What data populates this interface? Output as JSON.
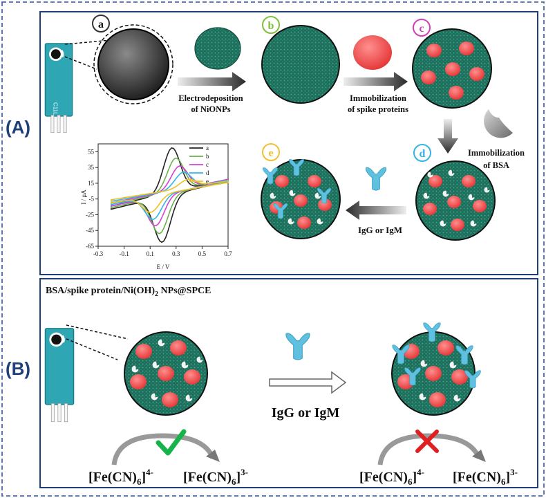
{
  "panels": {
    "a": "(A)",
    "b": "(B)"
  },
  "steps": {
    "a": "a",
    "b": "b",
    "c": "c",
    "d": "d",
    "e": "e"
  },
  "step_colors": {
    "a": "#333333",
    "b": "#7cbf3a",
    "c": "#d23fb8",
    "d": "#33b3e6",
    "e": "#f0c030"
  },
  "arrows": {
    "ab_line1": "Electrodeposition",
    "ab_line2": "of NiONPs",
    "bc_line1": "Immobilization",
    "bc_line2": "of spike proteins",
    "cd_line1": "Immobilization",
    "cd_line2": "of BSA",
    "de": "IgG or IgM"
  },
  "electrode_label": "C11L",
  "panel_b": {
    "title_main": "BSA/spike protein/Ni(OH)",
    "title_sub": "2",
    "title_rest": " NPs@SPCE",
    "arrow_label": "IgG or IgM",
    "probe_left": "[Fe(CN)",
    "probe_left_sub": "6",
    "probe_left_sup": "4-",
    "probe_right": "[Fe(CN)",
    "probe_right_sub": "6",
    "probe_right_sup": "3-"
  },
  "chart_data": {
    "type": "line",
    "title": "",
    "xlabel": "E / V",
    "ylabel": "I / μA",
    "xlim": [
      -0.3,
      0.7
    ],
    "ylim": [
      -65,
      65
    ],
    "x_ticks": [
      "-0.3",
      "-0.1",
      "0.1",
      "0.3",
      "0.5",
      "0.7"
    ],
    "y_ticks": [
      "55",
      "35",
      "15",
      "-5",
      "-25",
      "-45",
      "-65"
    ],
    "legend_position": "top-right",
    "series": [
      {
        "name": "a",
        "color": "#222222",
        "peak_anodic": [
          0.27,
          60
        ],
        "peak_cathodic": [
          0.19,
          -60
        ],
        "baseline_low": -14,
        "baseline_high": 20
      },
      {
        "name": "b",
        "color": "#6ab04c",
        "peak_anodic": [
          0.3,
          47
        ],
        "peak_cathodic": [
          0.17,
          -49
        ],
        "baseline_low": -12,
        "baseline_high": 20
      },
      {
        "name": "c",
        "color": "#d63fd6",
        "peak_anodic": [
          0.33,
          37
        ],
        "peak_cathodic": [
          0.14,
          -39
        ],
        "baseline_low": -10,
        "baseline_high": 20
      },
      {
        "name": "d",
        "color": "#2eb6ea",
        "peak_anodic": [
          0.36,
          29
        ],
        "peak_cathodic": [
          0.12,
          -31
        ],
        "baseline_low": -8,
        "baseline_high": 19
      },
      {
        "name": "e",
        "color": "#f0c020",
        "peak_anodic": [
          0.4,
          20
        ],
        "peak_cathodic": [
          0.1,
          -22
        ],
        "baseline_low": -6,
        "baseline_high": 18
      }
    ]
  }
}
